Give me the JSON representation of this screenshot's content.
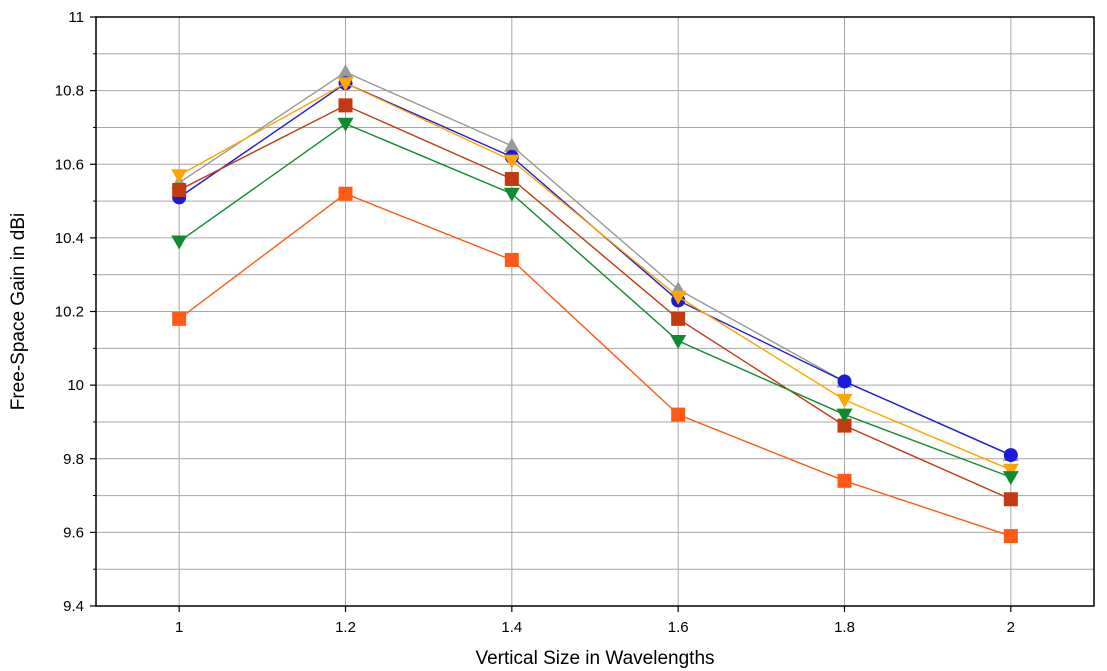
{
  "chart_data": {
    "type": "line",
    "xlabel": "Vertical Size in Wavelengths",
    "ylabel": "Free-Space Gain in dBi",
    "x": [
      1,
      1.2,
      1.4,
      1.6,
      1.8,
      2
    ],
    "x_tick_labels": [
      "1",
      "1.2",
      "1.4",
      "1.6",
      "1.8",
      "2"
    ],
    "xlim": [
      0.9,
      2.1
    ],
    "ylim": [
      9.4,
      11.0
    ],
    "y_ticks": [
      9.4,
      9.6,
      9.8,
      10,
      10.2,
      10.4,
      10.6,
      10.8,
      11
    ],
    "y_tick_labels": [
      "9.4",
      "9.6",
      "9.8",
      "10",
      "10.2",
      "10.4",
      "10.6",
      "10.8",
      "11"
    ],
    "grid": true,
    "legend": "none",
    "series": [
      {
        "color": "#999999",
        "marker": "triangle-up",
        "values": [
          10.55,
          10.85,
          10.65,
          10.26,
          10.01,
          9.81
        ]
      },
      {
        "color": "#1c1cd8",
        "marker": "circle",
        "values": [
          10.51,
          10.82,
          10.62,
          10.23,
          10.01,
          9.81
        ]
      },
      {
        "color": "#ffa500",
        "marker": "triangle-down",
        "values": [
          10.57,
          10.82,
          10.61,
          10.24,
          9.96,
          9.77
        ]
      },
      {
        "color": "#c23a0f",
        "marker": "square",
        "values": [
          10.53,
          10.76,
          10.56,
          10.18,
          9.89,
          9.69
        ]
      },
      {
        "color": "#108a30",
        "marker": "triangle-down",
        "values": [
          10.39,
          10.71,
          10.52,
          10.12,
          9.92,
          9.75
        ]
      },
      {
        "color": "#ff5a14",
        "marker": "square",
        "values": [
          10.18,
          10.52,
          10.34,
          9.92,
          9.74,
          9.59
        ]
      }
    ]
  }
}
